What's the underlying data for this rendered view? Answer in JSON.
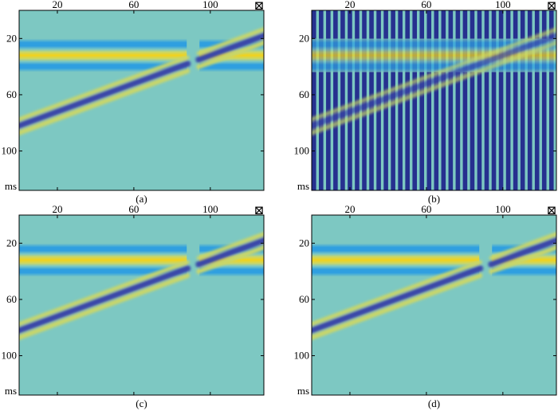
{
  "colors": {
    "background": "#7dc8c2",
    "positive": "#f2d21a",
    "positive_light": "#c8d66a",
    "negative": "#3b46a8",
    "negative_light": "#2f9fe0",
    "stripe_dark": "#26308f",
    "stripe_light": "#7dc8c2",
    "axis": "#000000"
  },
  "chart_data": [
    {
      "type": "heatmap",
      "panel_label": "(a)",
      "x_ticks": [
        20,
        60,
        100
      ],
      "y_ticks": [
        20,
        60,
        100
      ],
      "y_unit_label": "ms",
      "x_end_marker": "⊠",
      "xlim": [
        0,
        128
      ],
      "ylim": [
        0,
        128
      ],
      "events": [
        {
          "shape": "horizontal",
          "time_ms": 32,
          "polarity": "positive"
        },
        {
          "shape": "dipping",
          "time_ms_at_x0": 82,
          "time_ms_at_x128": 18,
          "polarity": "negative"
        }
      ],
      "gap_x": 91,
      "noise": "none"
    },
    {
      "type": "heatmap",
      "panel_label": "(b)",
      "x_ticks": [
        20,
        60,
        100
      ],
      "y_ticks": [
        20,
        60,
        100
      ],
      "y_unit_label": "ms",
      "x_end_marker": "⊠",
      "xlim": [
        0,
        128
      ],
      "ylim": [
        0,
        128
      ],
      "events": [
        {
          "shape": "horizontal",
          "time_ms": 32,
          "polarity": "positive"
        },
        {
          "shape": "dipping",
          "time_ms_at_x0": 82,
          "time_ms_at_x128": 18,
          "polarity": "negative"
        }
      ],
      "noise": "vertical stripes"
    },
    {
      "type": "heatmap",
      "panel_label": "(c)",
      "x_ticks": [
        20,
        60,
        100
      ],
      "y_ticks": [
        20,
        60,
        100
      ],
      "y_unit_label": "ms",
      "x_end_marker": "⊠",
      "xlim": [
        0,
        128
      ],
      "ylim": [
        0,
        128
      ],
      "events": [
        {
          "shape": "horizontal",
          "time_ms": 32,
          "polarity": "positive"
        },
        {
          "shape": "dipping",
          "time_ms_at_x0": 82,
          "time_ms_at_x128": 18,
          "polarity": "negative"
        }
      ],
      "gap_x": 91,
      "noise": "none"
    },
    {
      "type": "heatmap",
      "panel_label": "(d)",
      "x_ticks": [
        20,
        60,
        100
      ],
      "y_ticks": [
        20,
        60,
        100
      ],
      "y_unit_label": "ms",
      "x_end_marker": "⊠",
      "xlim": [
        0,
        128
      ],
      "ylim": [
        0,
        128
      ],
      "events": [
        {
          "shape": "horizontal",
          "time_ms": 32,
          "polarity": "positive"
        },
        {
          "shape": "dipping",
          "time_ms_at_x0": 82,
          "time_ms_at_x128": 18,
          "polarity": "negative"
        }
      ],
      "gap_x": 91,
      "noise": "none"
    }
  ]
}
